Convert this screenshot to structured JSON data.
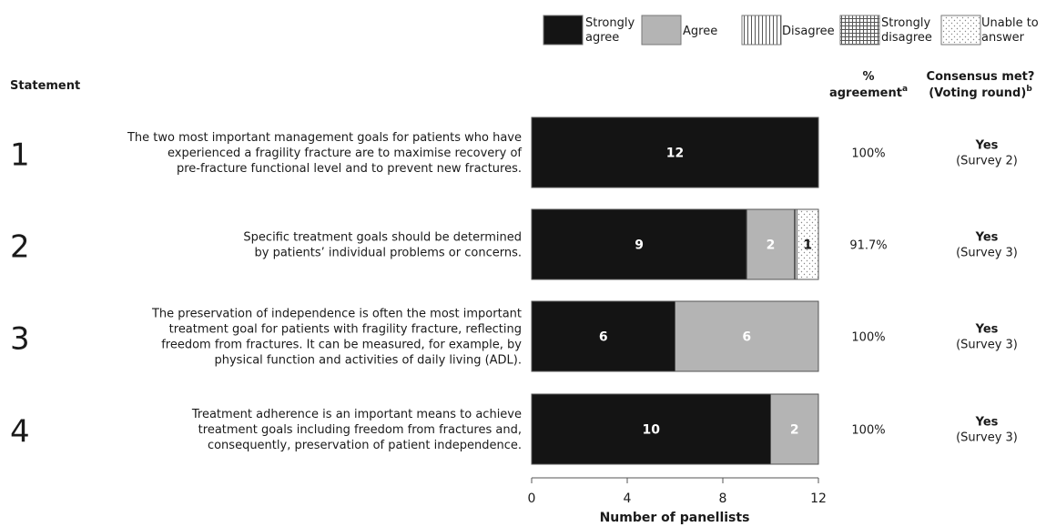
{
  "legend": [
    {
      "label_lines": [
        "Strongly",
        "agree"
      ],
      "pattern": "solid-dark"
    },
    {
      "label_lines": [
        "Agree"
      ],
      "pattern": "solid-grey"
    },
    {
      "label_lines": [
        "Disagree"
      ],
      "pattern": "vertical-lines"
    },
    {
      "label_lines": [
        "Strongly",
        "disagree"
      ],
      "pattern": "grid"
    },
    {
      "label_lines": [
        "Unable to",
        "answer"
      ],
      "pattern": "dots"
    }
  ],
  "headers": {
    "statement": "Statement",
    "agreement_lines": [
      "%",
      "agreement"
    ],
    "agreement_sup": "a",
    "consensus_lines": [
      "Consensus met?",
      "(Voting round)"
    ],
    "consensus_sup": "b"
  },
  "chart_data": {
    "type": "bar",
    "orientation": "horizontal",
    "stacked": true,
    "categories": [
      "1",
      "2",
      "3",
      "4"
    ],
    "series": [
      {
        "name": "Strongly agree",
        "values": [
          12,
          9,
          6,
          10
        ]
      },
      {
        "name": "Agree",
        "values": [
          0,
          2,
          6,
          2
        ]
      },
      {
        "name": "Disagree",
        "values": [
          0,
          0.1,
          0,
          0
        ]
      },
      {
        "name": "Strongly disagree",
        "values": [
          0,
          0,
          0,
          0
        ]
      },
      {
        "name": "Unable to answer",
        "values": [
          0,
          0.9,
          0,
          0
        ]
      }
    ],
    "data_labels": [
      [
        "12",
        "",
        "",
        "",
        ""
      ],
      [
        "9",
        "2",
        "",
        "",
        "1"
      ],
      [
        "6",
        "6",
        "",
        "",
        ""
      ],
      [
        "10",
        "2",
        "",
        "",
        ""
      ]
    ],
    "xlim": [
      0,
      12
    ],
    "xticks": [
      0,
      4,
      8,
      12
    ],
    "xlabel": "Number of panellists",
    "colors": {
      "Strongly agree": "#141414",
      "Agree": "#b4b4b4",
      "Disagree": "#ffffff",
      "Strongly disagree": "#ffffff",
      "Unable to answer": "#ffffff"
    }
  },
  "rows": [
    {
      "number": "1",
      "statement_lines": [
        "The two most important management goals for patients who have",
        "experienced a fragility fracture are to maximise recovery of",
        "pre-fracture functional level and to prevent new fractures."
      ],
      "agreement": "100%",
      "consensus": "Yes",
      "round": "(Survey 2)"
    },
    {
      "number": "2",
      "statement_lines": [
        "Specific treatment goals should be determined",
        "by patients’ individual problems or concerns."
      ],
      "agreement": "91.7%",
      "consensus": "Yes",
      "round": "(Survey 3)"
    },
    {
      "number": "3",
      "statement_lines": [
        "The preservation of independence is often the most important",
        "treatment goal for patients with fragility fracture, reflecting",
        "freedom from fractures. It can be measured, for example, by",
        "physical function and activities of daily living (ADL)."
      ],
      "agreement": "100%",
      "consensus": "Yes",
      "round": "(Survey 3)"
    },
    {
      "number": "4",
      "statement_lines": [
        "Treatment adherence is an important means to achieve",
        "treatment goals including freedom from fractures and,",
        "consequently, preservation of patient independence."
      ],
      "agreement": "100%",
      "consensus": "Yes",
      "round": "(Survey 3)"
    }
  ]
}
